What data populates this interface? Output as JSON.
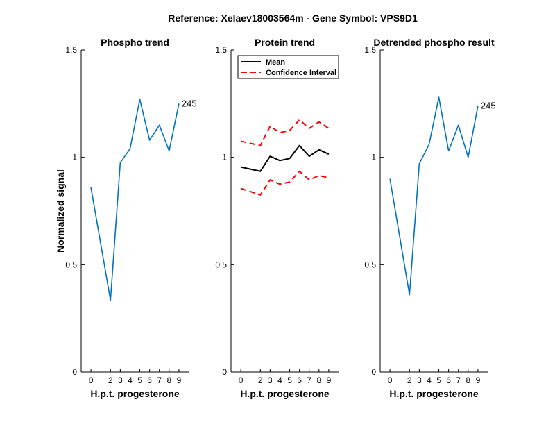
{
  "figure": {
    "suptitle": "Reference:  Xelaev18003564m - Gene Symbol:  VPS9D1",
    "ylabel": "Normalized signal"
  },
  "colors": {
    "series": "#0072BD",
    "mean": "#000000",
    "ci": "#FF0000",
    "axis": "#000000"
  },
  "chart_data": [
    {
      "type": "line",
      "title": "Phospho trend",
      "xlabel": "H.p.t. progesterone",
      "ylabel": "Normalized signal",
      "xlim": [
        -1,
        10
      ],
      "ylim": [
        0,
        1.5
      ],
      "xticks": [
        "0",
        "2",
        "3",
        "4",
        "5",
        "6",
        "7",
        "8",
        "9"
      ],
      "yticks": [
        "0",
        "0.5",
        "1",
        "1.5"
      ],
      "series": [
        {
          "values": [
            0.86,
            0.335,
            0.975,
            1.04,
            1.27,
            1.08,
            1.15,
            1.03,
            1.25
          ],
          "style": "solid",
          "color": "#0072BD"
        }
      ],
      "annotation": {
        "text": "245",
        "at_index": 8
      }
    },
    {
      "type": "line",
      "title": "Protein trend",
      "xlabel": "H.p.t. progesterone",
      "xlim": [
        -1,
        10
      ],
      "ylim": [
        0,
        1.5
      ],
      "xticks": [
        "0",
        "2",
        "3",
        "4",
        "5",
        "6",
        "7",
        "8",
        "9"
      ],
      "yticks": [
        "0",
        "0.5",
        "1",
        "1.5"
      ],
      "legend": {
        "position": "top-right"
      },
      "series": [
        {
          "name": "Mean",
          "values": [
            0.955,
            0.935,
            1.005,
            0.985,
            0.995,
            1.055,
            1.005,
            1.035,
            1.015
          ],
          "style": "solid",
          "color": "#000000"
        },
        {
          "name": "Confidence Interval",
          "values": [
            1.075,
            1.055,
            1.145,
            1.115,
            1.125,
            1.175,
            1.135,
            1.165,
            1.135
          ],
          "style": "dashed",
          "color": "#FF0000"
        },
        {
          "values": [
            0.855,
            0.825,
            0.895,
            0.875,
            0.885,
            0.935,
            0.895,
            0.915,
            0.905
          ],
          "style": "dashed",
          "color": "#FF0000"
        }
      ]
    },
    {
      "type": "line",
      "title": "Detrended phospho result",
      "xlabel": "H.p.t. progesterone",
      "xlim": [
        -1,
        10
      ],
      "ylim": [
        0,
        1.5
      ],
      "xticks": [
        "0",
        "2",
        "3",
        "4",
        "5",
        "6",
        "7",
        "8",
        "9"
      ],
      "yticks": [
        "0",
        "0.5",
        "1",
        "1.5"
      ],
      "series": [
        {
          "values": [
            0.9,
            0.36,
            0.97,
            1.06,
            1.28,
            1.03,
            1.15,
            1.0,
            1.24
          ],
          "style": "solid",
          "color": "#0072BD"
        }
      ],
      "annotation": {
        "text": "245",
        "at_index": 8
      }
    }
  ]
}
